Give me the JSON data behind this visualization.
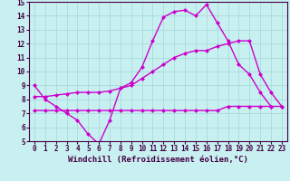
{
  "xlabel": "Windchill (Refroidissement éolien,°C)",
  "background_color": "#c8f0f0",
  "grid_color": "#a0d8d8",
  "line_color": "#cc00cc",
  "xlim": [
    -0.5,
    23.5
  ],
  "ylim": [
    5,
    15
  ],
  "xticks": [
    0,
    1,
    2,
    3,
    4,
    5,
    6,
    7,
    8,
    9,
    10,
    11,
    12,
    13,
    14,
    15,
    16,
    17,
    18,
    19,
    20,
    21,
    22,
    23
  ],
  "yticks": [
    5,
    6,
    7,
    8,
    9,
    10,
    11,
    12,
    13,
    14,
    15
  ],
  "line1_y": [
    9.0,
    8.0,
    7.5,
    7.0,
    6.5,
    5.5,
    4.8,
    6.5,
    8.8,
    9.2,
    10.3,
    12.2,
    13.9,
    14.3,
    14.4,
    14.0,
    14.8,
    13.5,
    12.2,
    10.5,
    9.8,
    8.5,
    7.5,
    null
  ],
  "line2_y": [
    8.2,
    8.2,
    8.3,
    8.4,
    8.5,
    8.5,
    8.5,
    8.6,
    8.8,
    9.0,
    9.5,
    10.0,
    10.5,
    11.0,
    11.3,
    11.5,
    11.5,
    11.8,
    12.0,
    12.2,
    12.2,
    9.8,
    8.5,
    7.5
  ],
  "line3_y": [
    7.2,
    7.2,
    7.2,
    7.2,
    7.2,
    7.2,
    7.2,
    7.2,
    7.2,
    7.2,
    7.2,
    7.2,
    7.2,
    7.2,
    7.2,
    7.2,
    7.2,
    7.2,
    7.5,
    7.5,
    7.5,
    7.5,
    7.5,
    7.5
  ],
  "markersize": 2.5,
  "linewidth": 1.0,
  "tick_fontsize": 5.5,
  "label_fontsize": 6.5
}
